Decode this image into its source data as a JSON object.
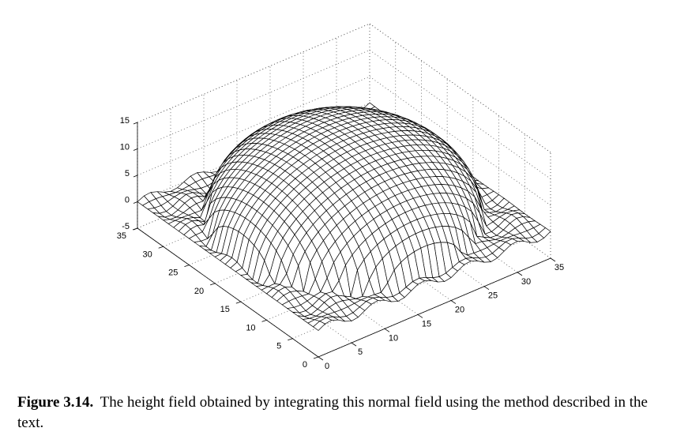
{
  "chart_data": {
    "type": "surface",
    "title": "",
    "xlabel": "",
    "ylabel": "",
    "zlabel": "",
    "x_ticks": [
      "0",
      "5",
      "10",
      "15",
      "20",
      "25",
      "30",
      "35"
    ],
    "y_ticks": [
      "0",
      "5",
      "10",
      "15",
      "20",
      "25",
      "30",
      "35"
    ],
    "z_ticks": [
      "-5",
      "0",
      "5",
      "10",
      "15"
    ],
    "xlim": [
      0,
      35
    ],
    "ylim": [
      0,
      35
    ],
    "zlim": [
      -5,
      15
    ],
    "grid": true,
    "mesh_color": "#000000",
    "face_color": "#ffffff",
    "surface": {
      "shape": "hemispherical dome",
      "center": [
        17.5,
        17.5
      ],
      "radius": 16.5,
      "peak_height": 15,
      "base_level": 0,
      "grid_points_per_axis": 36
    }
  },
  "caption": {
    "label": "Figure 3.14.",
    "text": "The height field obtained by integrating this normal field using the method described in the text."
  }
}
